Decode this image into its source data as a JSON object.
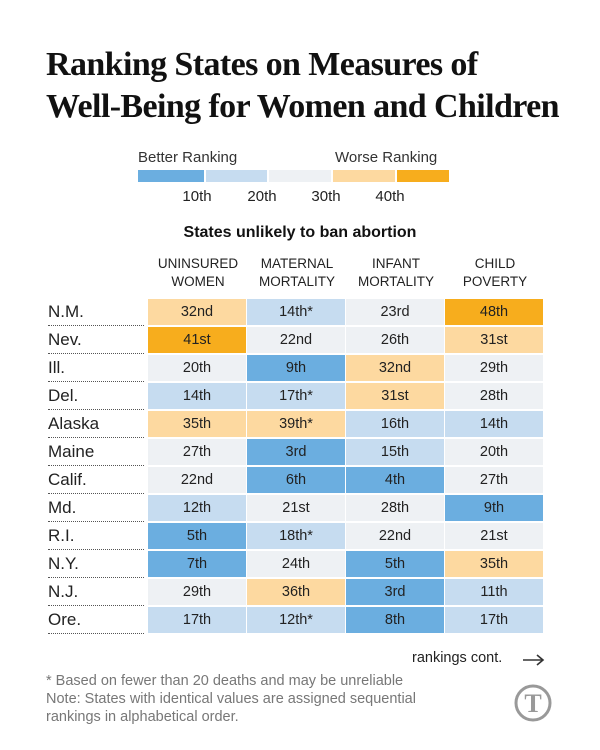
{
  "title_lines": [
    "Ranking States on Measures of",
    "Well-Being for Women and Children"
  ],
  "legend": {
    "better": "Better Ranking",
    "worse": "Worse Ranking",
    "ticks": [
      "10th",
      "20th",
      "30th",
      "40th"
    ],
    "colors": [
      "#6baee0",
      "#c6dcf0",
      "#eef1f4",
      "#fdd9a0",
      "#f7ad1d"
    ]
  },
  "chart_data": {
    "type": "table",
    "subtitle": "States unlikely to ban abortion",
    "columns": [
      "Uninsured women",
      "Maternal mortality",
      "Infant mortality",
      "Child poverty"
    ],
    "states": [
      "N.M.",
      "Nev.",
      "Ill.",
      "Del.",
      "Alaska",
      "Maine",
      "Calif.",
      "Md.",
      "R.I.",
      "N.Y.",
      "N.J.",
      "Ore."
    ],
    "values": [
      [
        "32nd",
        "14th*",
        "23rd",
        "48th"
      ],
      [
        "41st",
        "22nd",
        "26th",
        "31st"
      ],
      [
        "20th",
        "9th",
        "32nd",
        "29th"
      ],
      [
        "14th",
        "17th*",
        "31st",
        "28th"
      ],
      [
        "35th",
        "39th*",
        "16th",
        "14th"
      ],
      [
        "27th",
        "3rd",
        "15th",
        "20th"
      ],
      [
        "22nd",
        "6th",
        "4th",
        "27th"
      ],
      [
        "12th",
        "21st",
        "28th",
        "9th"
      ],
      [
        "5th",
        "18th*",
        "22nd",
        "21st"
      ],
      [
        "7th",
        "24th",
        "5th",
        "35th"
      ],
      [
        "29th",
        "36th",
        "3rd",
        "11th"
      ],
      [
        "17th",
        "12th*",
        "8th",
        "17th"
      ]
    ]
  },
  "more_label": "rankings cont.",
  "notes": [
    "* Based on fewer than 20 deaths and may be unreliable",
    "Note: States with identical values are assigned sequential rankings in alphabetical order."
  ]
}
